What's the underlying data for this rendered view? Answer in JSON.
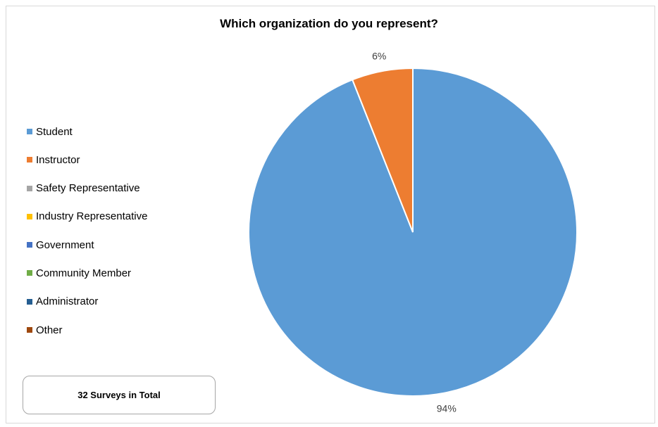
{
  "chart_data": {
    "type": "pie",
    "title": "Which organization do you represent?",
    "categories": [
      "Student",
      "Instructor",
      "Safety Representative",
      "Industry Representative",
      "Government",
      "Community Member",
      "Administrator",
      "Other"
    ],
    "values": [
      94,
      6,
      0,
      0,
      0,
      0,
      0,
      0
    ],
    "data_labels": [
      "94%",
      "6%",
      "",
      "",
      "",
      "",
      "",
      ""
    ],
    "colors": [
      "#5b9bd5",
      "#ed7d31",
      "#a5a5a5",
      "#ffc000",
      "#4472c4",
      "#70ad47",
      "#255e91",
      "#9e480e"
    ],
    "legend_position": "left"
  },
  "note": "32 Surveys in Total"
}
